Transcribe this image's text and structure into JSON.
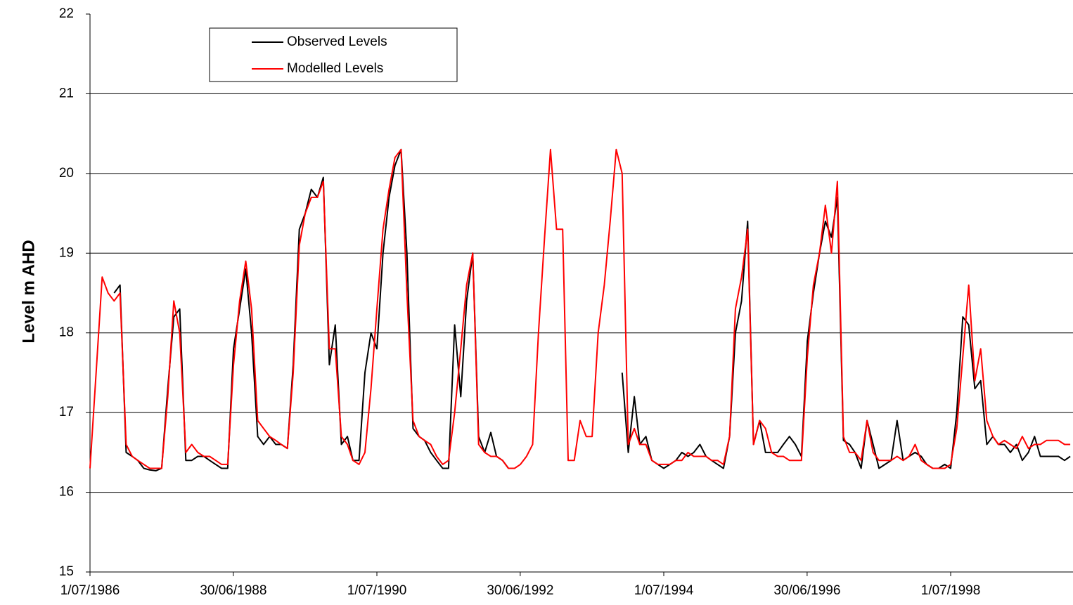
{
  "chart_data": {
    "type": "line",
    "y_label": "Level m AHD",
    "x": [
      "1986-07-01",
      "1986-08-01",
      "1986-09-01",
      "1986-10-01",
      "1986-11-01",
      "1986-12-01",
      "1987-01-01",
      "1987-02-01",
      "1987-03-01",
      "1987-04-01",
      "1987-05-01",
      "1987-06-01",
      "1987-07-01",
      "1987-08-01",
      "1987-09-01",
      "1987-10-01",
      "1987-11-01",
      "1987-12-01",
      "1988-01-01",
      "1988-02-01",
      "1988-03-01",
      "1988-04-01",
      "1988-05-01",
      "1988-06-01",
      "1988-07-01",
      "1988-08-01",
      "1988-09-01",
      "1988-10-01",
      "1988-11-01",
      "1988-12-01",
      "1989-01-01",
      "1989-02-01",
      "1989-03-01",
      "1989-04-01",
      "1989-05-01",
      "1989-06-01",
      "1989-07-01",
      "1989-08-01",
      "1989-09-01",
      "1989-10-01",
      "1989-11-01",
      "1989-12-01",
      "1990-01-01",
      "1990-02-01",
      "1990-03-01",
      "1990-04-01",
      "1990-05-01",
      "1990-06-01",
      "1990-07-01",
      "1990-08-01",
      "1990-09-01",
      "1990-10-01",
      "1990-11-01",
      "1990-12-01",
      "1991-01-01",
      "1991-02-01",
      "1991-03-01",
      "1991-04-01",
      "1991-05-01",
      "1991-06-01",
      "1991-07-01",
      "1991-08-01",
      "1991-09-01",
      "1991-10-01",
      "1991-11-01",
      "1991-12-01",
      "1992-01-01",
      "1992-02-01",
      "1992-03-01",
      "1992-04-01",
      "1992-05-01",
      "1992-06-01",
      "1992-07-01",
      "1992-08-01",
      "1992-09-01",
      "1992-10-01",
      "1992-11-01",
      "1992-12-01",
      "1993-01-01",
      "1993-02-01",
      "1993-03-01",
      "1993-04-01",
      "1993-05-01",
      "1993-06-01",
      "1993-07-01",
      "1993-08-01",
      "1993-09-01",
      "1993-10-01",
      "1993-11-01",
      "1993-12-01",
      "1994-01-01",
      "1994-02-01",
      "1994-03-01",
      "1994-04-01",
      "1994-05-01",
      "1994-06-01",
      "1994-07-01",
      "1994-08-01",
      "1994-09-01",
      "1994-10-01",
      "1994-11-01",
      "1994-12-01",
      "1995-01-01",
      "1995-02-01",
      "1995-03-01",
      "1995-04-01",
      "1995-05-01",
      "1995-06-01",
      "1995-07-01",
      "1995-08-01",
      "1995-09-01",
      "1995-10-01",
      "1995-11-01",
      "1995-12-01",
      "1996-01-01",
      "1996-02-01",
      "1996-03-01",
      "1996-04-01",
      "1996-05-01",
      "1996-06-01",
      "1996-07-01",
      "1996-08-01",
      "1996-09-01",
      "1996-10-01",
      "1996-11-01",
      "1996-12-01",
      "1997-01-01",
      "1997-02-01",
      "1997-03-01",
      "1997-04-01",
      "1997-05-01",
      "1997-06-01",
      "1997-07-01",
      "1997-08-01",
      "1997-09-01",
      "1997-10-01",
      "1997-11-01",
      "1997-12-01",
      "1998-01-01",
      "1998-02-01",
      "1998-03-01",
      "1998-04-01",
      "1998-05-01",
      "1998-06-01",
      "1998-07-01",
      "1998-08-01",
      "1998-09-01",
      "1998-10-01",
      "1998-11-01",
      "1998-12-01",
      "1999-01-01",
      "1999-02-01",
      "1999-03-01",
      "1999-04-01",
      "1999-05-01",
      "1999-06-01",
      "1999-07-01",
      "1999-08-01",
      "1999-09-01",
      "1999-10-01",
      "1999-11-01",
      "1999-12-01",
      "2000-01-01",
      "2000-02-01",
      "2000-03-01"
    ],
    "series": [
      {
        "name": "Observed Levels",
        "color": "#000000",
        "values": [
          null,
          null,
          null,
          null,
          18.5,
          18.6,
          16.5,
          16.45,
          16.4,
          16.3,
          16.28,
          16.27,
          16.3,
          17.3,
          18.2,
          18.3,
          16.4,
          16.4,
          16.45,
          16.45,
          16.4,
          16.35,
          16.3,
          16.3,
          17.8,
          18.3,
          18.8,
          18.0,
          16.7,
          16.6,
          16.7,
          16.6,
          16.6,
          16.55,
          17.6,
          19.3,
          19.5,
          19.8,
          19.7,
          19.95,
          17.6,
          18.1,
          16.6,
          16.7,
          16.4,
          16.4,
          17.5,
          18.0,
          17.8,
          19.0,
          19.7,
          20.1,
          20.3,
          19.0,
          16.8,
          16.7,
          16.65,
          16.5,
          16.4,
          16.3,
          16.3,
          18.1,
          17.2,
          18.4,
          19.0,
          16.7,
          16.5,
          16.75,
          16.45,
          16.4,
          16.3,
          null,
          null,
          null,
          null,
          null,
          null,
          null,
          null,
          null,
          null,
          null,
          null,
          null,
          null,
          null,
          null,
          null,
          null,
          17.5,
          16.5,
          17.2,
          16.6,
          16.7,
          16.4,
          16.35,
          16.3,
          16.35,
          16.4,
          16.5,
          16.45,
          16.5,
          16.6,
          16.45,
          16.4,
          16.35,
          16.3,
          16.7,
          18.0,
          18.4,
          19.4,
          16.6,
          16.9,
          16.5,
          16.5,
          16.5,
          16.6,
          16.7,
          16.6,
          16.45,
          17.9,
          18.5,
          19.0,
          19.4,
          19.2,
          19.7,
          16.65,
          16.6,
          16.5,
          16.3,
          16.9,
          16.6,
          16.3,
          16.35,
          16.4,
          16.9,
          16.4,
          16.45,
          16.5,
          16.45,
          16.35,
          16.3,
          16.3,
          16.35,
          16.3,
          17.0,
          18.2,
          18.1,
          17.3,
          17.4,
          16.6,
          16.7,
          16.6,
          16.6,
          16.5,
          16.6,
          16.4,
          16.5,
          16.7,
          16.45,
          16.45,
          16.45,
          16.45,
          16.4,
          16.45
        ]
      },
      {
        "name": "Modelled Levels",
        "color": "#ff0000",
        "values": [
          16.3,
          17.5,
          18.7,
          18.5,
          18.4,
          18.5,
          16.6,
          16.45,
          16.4,
          16.35,
          16.3,
          16.3,
          16.3,
          17.2,
          18.4,
          18.0,
          16.5,
          16.6,
          16.5,
          16.45,
          16.45,
          16.4,
          16.35,
          16.35,
          17.6,
          18.4,
          18.9,
          18.3,
          16.9,
          16.8,
          16.7,
          16.65,
          16.6,
          16.55,
          17.5,
          19.1,
          19.5,
          19.7,
          19.7,
          19.9,
          17.8,
          17.8,
          16.7,
          16.6,
          16.4,
          16.35,
          16.5,
          17.3,
          18.3,
          19.3,
          19.8,
          20.2,
          20.3,
          18.5,
          16.9,
          16.7,
          16.65,
          16.6,
          16.45,
          16.35,
          16.4,
          17.0,
          17.8,
          18.6,
          19.0,
          16.6,
          16.5,
          16.45,
          16.45,
          16.4,
          16.3,
          16.3,
          16.35,
          16.45,
          16.6,
          18.0,
          19.2,
          20.3,
          19.3,
          19.3,
          16.4,
          16.4,
          16.9,
          16.7,
          16.7,
          18.0,
          18.6,
          19.4,
          20.3,
          20.0,
          16.6,
          16.8,
          16.6,
          16.6,
          16.4,
          16.35,
          16.35,
          16.35,
          16.4,
          16.4,
          16.5,
          16.45,
          16.45,
          16.45,
          16.4,
          16.4,
          16.35,
          16.7,
          18.3,
          18.7,
          19.3,
          16.6,
          16.9,
          16.8,
          16.5,
          16.45,
          16.45,
          16.4,
          16.4,
          16.4,
          17.7,
          18.6,
          19.0,
          19.6,
          19.0,
          19.9,
          16.7,
          16.5,
          16.5,
          16.4,
          16.9,
          16.5,
          16.4,
          16.4,
          16.4,
          16.45,
          16.4,
          16.45,
          16.6,
          16.4,
          16.35,
          16.3,
          16.3,
          16.3,
          16.35,
          16.8,
          17.7,
          18.6,
          17.4,
          17.8,
          16.9,
          16.7,
          16.6,
          16.65,
          16.6,
          16.55,
          16.7,
          16.55,
          16.6,
          16.6,
          16.65,
          16.65,
          16.65,
          16.6,
          16.6
        ]
      }
    ],
    "xlim": [
      "1986-07-01",
      "2000-03-15"
    ],
    "xticks": [
      {
        "value": "1986-07-01",
        "label": "1/07/1986"
      },
      {
        "value": "1988-06-30",
        "label": "30/06/1988"
      },
      {
        "value": "1990-07-01",
        "label": "1/07/1990"
      },
      {
        "value": "1992-06-30",
        "label": "30/06/1992"
      },
      {
        "value": "1994-07-01",
        "label": "1/07/1994"
      },
      {
        "value": "1996-06-30",
        "label": "30/06/1996"
      },
      {
        "value": "1998-07-01",
        "label": "1/07/1998"
      }
    ],
    "ylim": [
      15,
      22
    ],
    "yticks": [
      15,
      16,
      17,
      18,
      19,
      20,
      21,
      22
    ],
    "grid": true,
    "legend": "upper left"
  }
}
